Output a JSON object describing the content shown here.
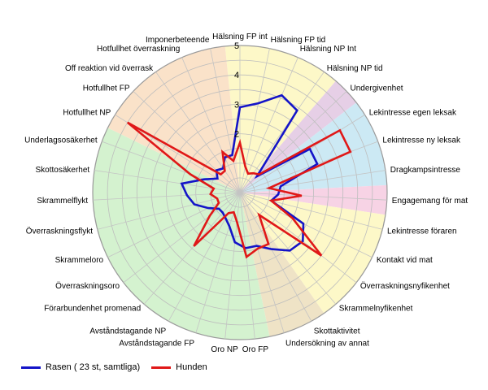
{
  "chart_data": {
    "type": "radar",
    "title": "",
    "rmax": 5,
    "ticks": [
      "2",
      "3",
      "4",
      "5"
    ],
    "grid": true,
    "legend_position": "bottom-left",
    "categories": [
      "Hälsning FP int",
      "Hälsning FP tid",
      "Hälsning NP Int",
      "Hälsning NP tid",
      "Undergivenhet",
      "Lekintresse egen leksak",
      "Lekintresse ny leksak",
      "Dragkampsintresse",
      "Engagemang för mat",
      "Lekintresse föraren",
      "Kontakt vid mat",
      "Överraskningsnyfikenhet",
      "Skrammelnyfikenhet",
      "Skottaktivitet",
      "Undersökning av annat",
      "Oro FP",
      "Oro NP",
      "Avståndstagande FP",
      "Avståndstagande NP",
      "Förarbundenhet promenad",
      "Överraskningsoro",
      "Skrammeloro",
      "Överraskningsflykt",
      "Skrammelflykt",
      "Skottosäkerhet",
      "Underlagsosäkerhet",
      "Hotfullhet NP",
      "Hotfullhet FP",
      "Off reaktion vid överrask",
      "Hotfullhet överraskning",
      "Imponerbeteende"
    ],
    "sectors": [
      {
        "from": 0,
        "to": 3,
        "color": "#fdf8c8"
      },
      {
        "from": 4,
        "to": 4,
        "color": "#e6cfe6"
      },
      {
        "from": 5,
        "to": 7,
        "color": "#cce9f4"
      },
      {
        "from": 8,
        "to": 8,
        "color": "#f7d3e5"
      },
      {
        "from": 9,
        "to": 12,
        "color": "#fdf8c8"
      },
      {
        "from": 13,
        "to": 14,
        "color": "#efe3c6"
      },
      {
        "from": 15,
        "to": 25,
        "color": "#d4f2cf"
      },
      {
        "from": 26,
        "to": 30,
        "color": "#fae2c9"
      }
    ],
    "series": [
      {
        "name": "Rasen ( 23 st, samtliga)",
        "color": "#1414c8",
        "values": [
          2.9,
          3.1,
          3.6,
          3.4,
          0.8,
          2.8,
          2.8,
          1.4,
          1.3,
          1.1,
          2.4,
          2.7,
          2.6,
          2.2,
          1.9,
          1.9,
          1.7,
          1.2,
          1.0,
          0.9,
          0.9,
          1.2,
          1.6,
          1.8,
          2.0,
          1.3,
          0.9,
          1.1,
          1.0,
          1.3,
          1.3
        ]
      },
      {
        "name": "Hunden",
        "color": "#e01818",
        "values": [
          1.7,
          0.9,
          0.7,
          0.8,
          0.9,
          4.0,
          4.0,
          1.0,
          2.1,
          1.1,
          2.0,
          3.5,
          1.0,
          2.0,
          2.0,
          2.2,
          1.0,
          0.7,
          0.8,
          2.4,
          1.3,
          0.8,
          0.8,
          1.0,
          0.9,
          1.8,
          4.5,
          0.9,
          0.9,
          1.5,
          1.1
        ]
      }
    ]
  }
}
